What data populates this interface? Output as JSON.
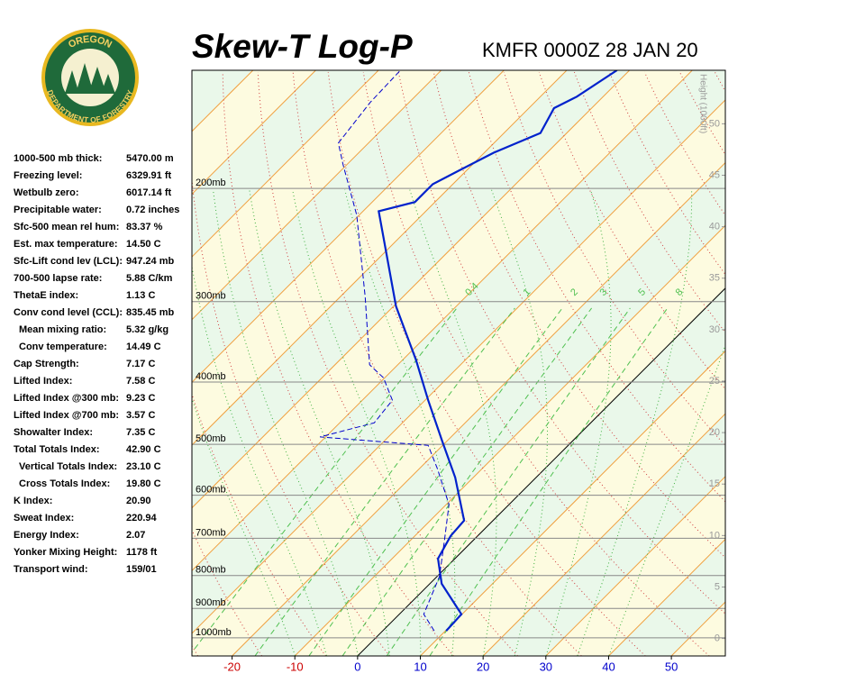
{
  "header": {
    "title": "Skew-T Log-P",
    "station": "KMFR 0000Z 28 JAN 20",
    "logo_top": "OREGON",
    "logo_bottom": "DEPARTMENT OF FORESTRY"
  },
  "stats": [
    {
      "label": "1000-500 mb thick:",
      "value": "5470.00 m"
    },
    {
      "label": "Freezing level:",
      "value": "6329.91 ft"
    },
    {
      "label": "Wetbulb zero:",
      "value": "6017.14 ft"
    },
    {
      "label": "Precipitable water:",
      "value": "0.72 inches"
    },
    {
      "label": "Sfc-500 mean rel hum:",
      "value": "83.37 %"
    },
    {
      "label": "Est. max temperature:",
      "value": "14.50 C"
    },
    {
      "label": "Sfc-Lift cond lev (LCL):",
      "value": "947.24 mb"
    },
    {
      "label": "700-500 lapse rate:",
      "value": "5.88 C/km"
    },
    {
      "label": "ThetaE index:",
      "value": "1.13 C"
    },
    {
      "label": "Conv cond level (CCL):",
      "value": "835.45 mb"
    },
    {
      "label": "Mean mixing ratio:",
      "value": "5.32 g/kg"
    },
    {
      "label": "Conv temperature:",
      "value": "14.49 C"
    },
    {
      "label": "Cap Strength:",
      "value": "7.17 C"
    },
    {
      "label": "Lifted Index:",
      "value": "7.58 C"
    },
    {
      "label": "Lifted Index @300 mb:",
      "value": "9.23 C"
    },
    {
      "label": "Lifted Index @700 mb:",
      "value": "3.57 C"
    },
    {
      "label": "Showalter Index:",
      "value": "7.35 C"
    },
    {
      "label": "Total Totals Index:",
      "value": "42.90 C"
    },
    {
      "label": "Vertical Totals Index:",
      "value": "23.10 C"
    },
    {
      "label": "Cross Totals Index:",
      "value": "19.80 C"
    },
    {
      "label": "K Index:",
      "value": "20.90"
    },
    {
      "label": "Sweat Index:",
      "value": "220.94"
    },
    {
      "label": "Energy Index:",
      "value": "2.07"
    },
    {
      "label": "Yonker Mixing Height:",
      "value": "1178 ft"
    },
    {
      "label": "Transport wind:",
      "value": "159/01"
    }
  ],
  "chart_data": {
    "type": "skew-t",
    "xlim": [
      -26.4,
      58.6
    ],
    "xticks": [
      -20,
      -10,
      0,
      10,
      20,
      30,
      40,
      50
    ],
    "negative_tick_color": "#cc0000",
    "tick_color": "#0000cc",
    "ylim": [
      1067,
      131
    ],
    "log_scale": true,
    "yticks": [
      {
        "value": 200,
        "label": "200mb"
      },
      {
        "value": 300,
        "label": "300mb"
      },
      {
        "value": 400,
        "label": "400mb"
      },
      {
        "value": 500,
        "label": "500mb"
      },
      {
        "value": 600,
        "label": "600mb"
      },
      {
        "value": 700,
        "label": "700mb"
      },
      {
        "value": 800,
        "label": "800mb"
      },
      {
        "value": 900,
        "label": "900mb"
      },
      {
        "value": 1000,
        "label": "1000mb"
      }
    ],
    "y2_label": "Height (1000ft)",
    "y2lim": [
      -1.7,
      55.2
    ],
    "y2ticks": [
      0,
      5,
      10,
      15,
      20,
      25,
      30,
      35,
      40,
      45,
      50
    ],
    "mixing_ratios": [
      0.4,
      1,
      2,
      3,
      5,
      8
    ],
    "series": [
      {
        "color": "#0022cc",
        "dashed": false,
        "x": [
          10.1,
          9.9,
          1.9,
          -2.7,
          -4.3,
          -4.6,
          -12.9,
          -20.8,
          -29.5,
          -37.8,
          -49.6,
          -67.5,
          -63.2,
          -63.2,
          -61.5,
          -58.5,
          -54.2,
          -56.0,
          -54.2,
          -52.0
        ],
        "values": [
          975,
          919,
          824,
          753,
          694,
          657,
          563,
          494,
          427,
          370,
          305,
          217,
          210,
          197,
          189,
          176,
          164,
          150,
          144,
          131
        ]
      },
      {
        "color": "#0000cc",
        "dashed": true,
        "x": [
          8.2,
          3.9,
          0.4,
          -4.6,
          -9.6,
          -17.2,
          -22.3,
          -40.9,
          -34.5,
          -35.2,
          -40.2,
          -44.5,
          -56.0,
          -70.4,
          -80.5,
          -84.8,
          -86.2,
          -86.5
        ],
        "values": [
          975,
          919,
          803,
          705,
          620,
          545,
          502,
          487,
          463,
          427,
          394,
          376,
          295,
          220,
          184,
          170,
          147,
          131
        ]
      }
    ]
  }
}
